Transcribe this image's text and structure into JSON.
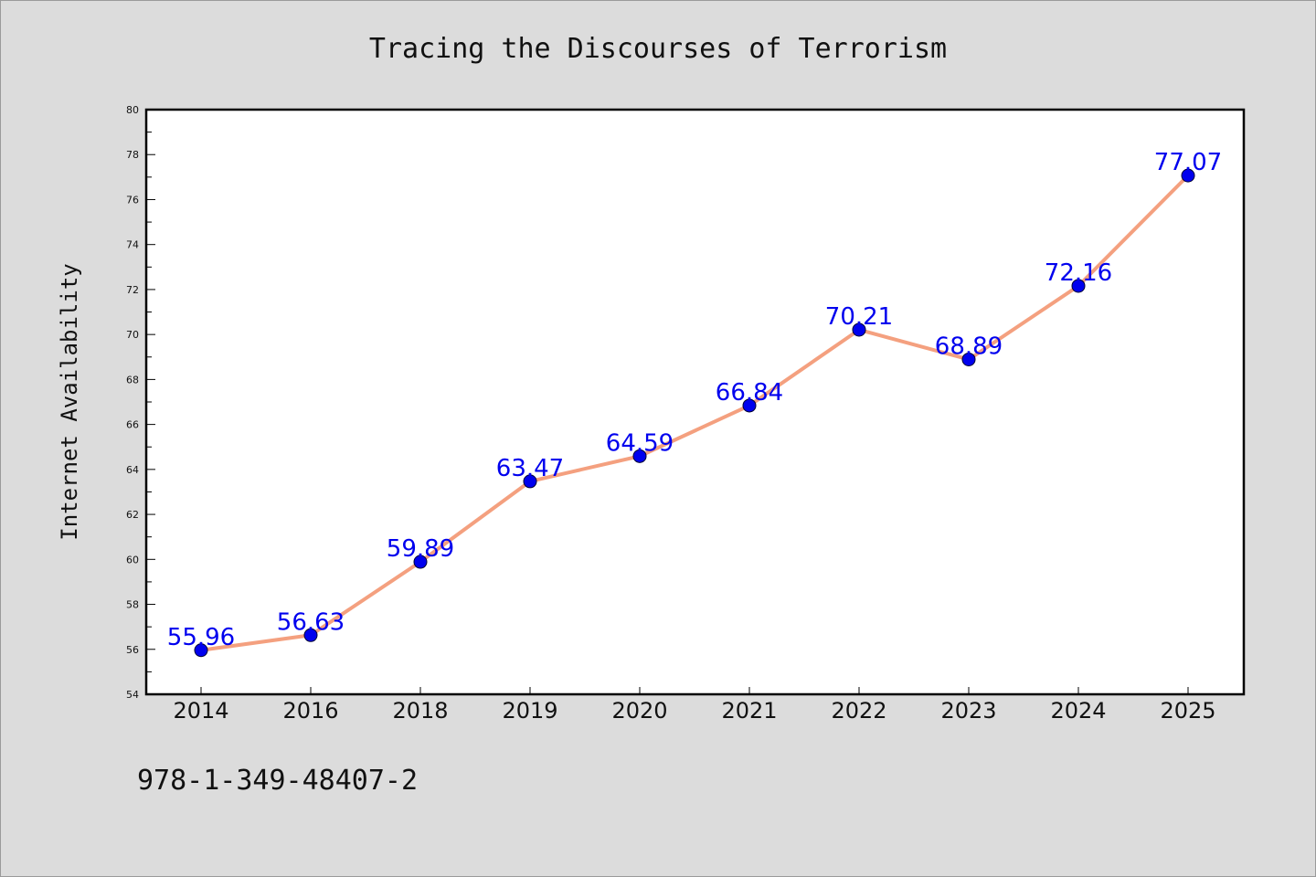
{
  "chart_data": {
    "type": "line",
    "title": "Tracing the Discourses of Terrorism",
    "xlabel": "",
    "ylabel": "Internet Availability",
    "categories": [
      "2014",
      "2016",
      "2018",
      "2019",
      "2020",
      "2021",
      "2022",
      "2023",
      "2024",
      "2025"
    ],
    "series": [
      {
        "values": [
          55.96,
          56.63,
          59.89,
          63.47,
          64.59,
          66.84,
          70.21,
          68.89,
          72.16,
          77.07
        ],
        "data_labels": [
          "55.96",
          "56.63",
          "59.89",
          "63.47",
          "64.59",
          "66.84",
          "70.21",
          "68.89",
          "72.16",
          "77.07"
        ],
        "line_color": "#f4a07f",
        "marker_color": "#0000ee"
      }
    ],
    "ylim": [
      54,
      80
    ],
    "yticks": [
      54,
      56,
      58,
      60,
      62,
      64,
      66,
      68,
      70,
      72,
      74,
      76,
      78,
      80
    ],
    "grid": false,
    "legend": "none"
  },
  "footer": {
    "isbn": "978-1-349-48407-2"
  },
  "colors": {
    "background": "#dcdcdc",
    "plot_background": "#ffffff",
    "axis": "#000000",
    "label": "#0000ee"
  }
}
